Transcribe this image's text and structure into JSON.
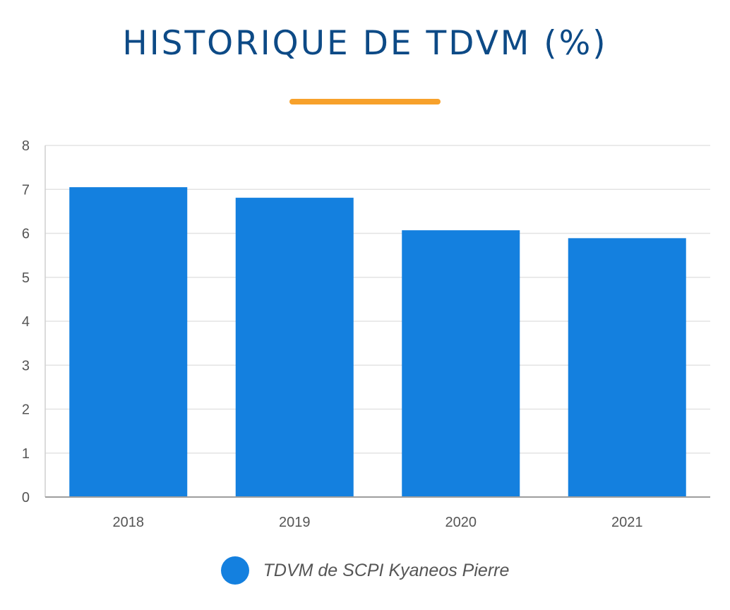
{
  "title": "HISTORIQUE DE TDVM (%)",
  "accent_color": "#f7a12b",
  "title_color": "#0d4a86",
  "chart_data": {
    "type": "bar",
    "categories": [
      "2018",
      "2019",
      "2020",
      "2021"
    ],
    "series": [
      {
        "name": "TDVM de SCPI Kyaneos Pierre",
        "values": [
          7.05,
          6.81,
          6.07,
          5.89
        ],
        "color": "#1480df"
      }
    ],
    "ylim": [
      0,
      8
    ],
    "yticks": [
      "0",
      "1",
      "2",
      "3",
      "4",
      "5",
      "6",
      "7",
      "8"
    ],
    "grid": true,
    "legend_position": "bottom"
  }
}
